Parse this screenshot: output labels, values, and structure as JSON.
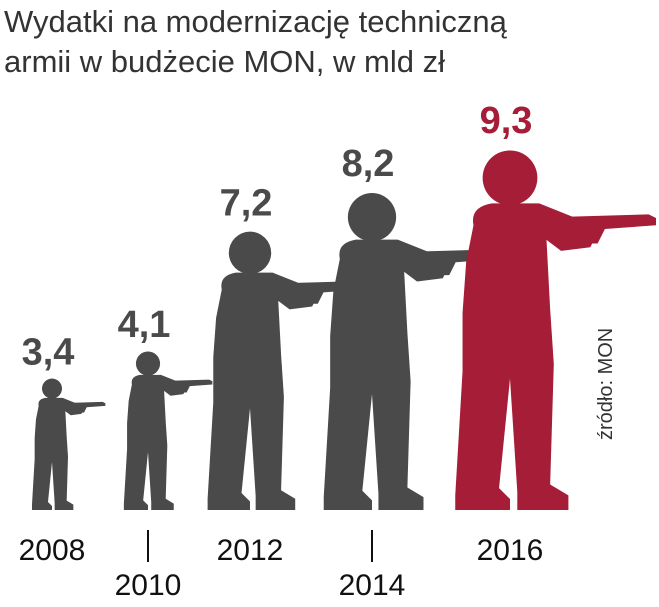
{
  "chart_data": {
    "type": "pictogram",
    "title": "Wydatki na modernizację techniczną armii w budżecie MON, w mld zł",
    "categories": [
      "2008",
      "2010",
      "2012",
      "2014",
      "2016"
    ],
    "values": [
      3.4,
      4.1,
      7.2,
      8.2,
      9.3
    ],
    "value_labels": [
      "3,4",
      "4,1",
      "7,2",
      "8,2",
      "9,3"
    ],
    "colors": [
      "#4a4a4a",
      "#4a4a4a",
      "#4a4a4a",
      "#4a4a4a",
      "#a51d36"
    ],
    "source": "źródło: MON"
  }
}
